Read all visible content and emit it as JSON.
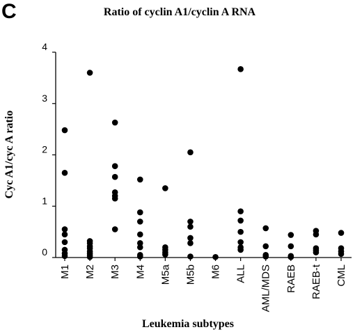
{
  "panel_label": "C",
  "chart_data": {
    "type": "scatter",
    "title": "Ratio of cyclin A1/cyclin A RNA",
    "xlabel": "Leukemia subtypes",
    "ylabel": "Cyc A1/cyc A ratio",
    "ylim": [
      0,
      4
    ],
    "yticks": [
      "0",
      "1",
      "2",
      "3",
      "4"
    ],
    "grid": false,
    "categories": [
      "M1",
      "M2",
      "M3",
      "M4",
      "M5a",
      "M5b",
      "M6",
      "ALL",
      "AML/MDS",
      "RAEB",
      "RAEB-t",
      "CML"
    ],
    "series": [
      {
        "points": [
          {
            "category": "M1",
            "values": [
              2.48,
              1.65,
              0.55,
              0.45,
              0.3,
              0.15,
              0.08,
              0.03
            ]
          },
          {
            "category": "M2",
            "values": [
              3.6,
              0.32,
              0.28,
              0.22,
              0.18,
              0.12,
              0.08,
              0.04,
              0.01
            ]
          },
          {
            "category": "M3",
            "values": [
              2.63,
              1.78,
              1.57,
              1.27,
              1.2,
              1.15,
              0.55
            ]
          },
          {
            "category": "M4",
            "values": [
              1.52,
              0.88,
              0.7,
              0.45,
              0.28,
              0.2,
              0.05,
              0.02
            ]
          },
          {
            "category": "M5a",
            "values": [
              1.35,
              0.2,
              0.15,
              0.1,
              0.06
            ]
          },
          {
            "category": "M5b",
            "values": [
              2.05,
              0.7,
              0.6,
              0.38,
              0.28,
              0.02
            ]
          },
          {
            "category": "M6",
            "values": [
              0.01
            ]
          },
          {
            "category": "ALL",
            "values": [
              3.67,
              0.9,
              0.72,
              0.5,
              0.3,
              0.2,
              0.15
            ]
          },
          {
            "category": "AML/MDS",
            "values": [
              0.57,
              0.22,
              0.05,
              0.02
            ]
          },
          {
            "category": "RAEB",
            "values": [
              0.44,
              0.22,
              0.03,
              0.01,
              0.01
            ]
          },
          {
            "category": "RAEB-t",
            "values": [
              0.52,
              0.45,
              0.18,
              0.14,
              0.1
            ]
          },
          {
            "category": "CML",
            "values": [
              0.48,
              0.18,
              0.12,
              0.07
            ]
          }
        ]
      }
    ]
  }
}
